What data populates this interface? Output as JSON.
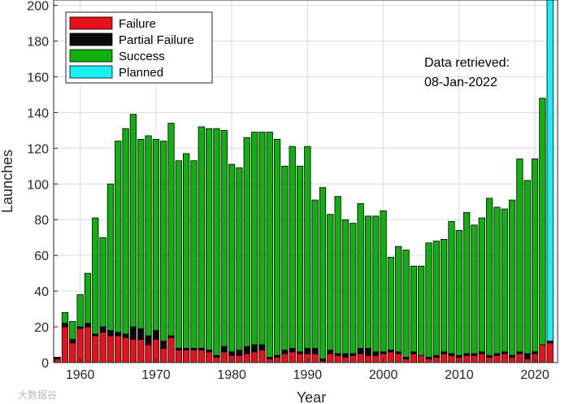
{
  "chart_data": {
    "type": "bar",
    "stacked": true,
    "xlabel": "Year",
    "ylabel": "Launches",
    "xlim": [
      1956.5,
      2023
    ],
    "ylim": [
      0,
      203
    ],
    "grid": true,
    "legend_position": "top-left",
    "x_ticks": [
      1960,
      1970,
      1980,
      1990,
      2000,
      2010,
      2020
    ],
    "y_ticks": [
      0,
      20,
      40,
      60,
      80,
      100,
      120,
      140,
      160,
      180,
      200
    ],
    "annotation": [
      "Data retrieved:",
      "08-Jan-2022"
    ],
    "watermark": "大数据谷",
    "colors": {
      "failure": "#e8111a",
      "partial": "#0a0a0a",
      "success": "#11b011",
      "planned": "#19f0f5"
    },
    "series": [
      {
        "name": "Failure",
        "key": "failure"
      },
      {
        "name": "Partial Failure",
        "key": "partial"
      },
      {
        "name": "Success",
        "key": "success"
      },
      {
        "name": "Planned",
        "key": "planned"
      }
    ],
    "x": [
      1957,
      1958,
      1959,
      1960,
      1961,
      1962,
      1963,
      1964,
      1965,
      1966,
      1967,
      1968,
      1969,
      1970,
      1971,
      1972,
      1973,
      1974,
      1975,
      1976,
      1977,
      1978,
      1979,
      1980,
      1981,
      1982,
      1983,
      1984,
      1985,
      1986,
      1987,
      1988,
      1989,
      1990,
      1991,
      1992,
      1993,
      1994,
      1995,
      1996,
      1997,
      1998,
      1999,
      2000,
      2001,
      2002,
      2003,
      2004,
      2005,
      2006,
      2007,
      2008,
      2009,
      2010,
      2011,
      2012,
      2013,
      2014,
      2015,
      2016,
      2017,
      2018,
      2019,
      2020,
      2021,
      2022
    ],
    "failure": [
      2,
      20,
      11,
      19,
      20,
      15,
      17,
      15,
      15,
      14,
      13,
      13,
      10,
      13,
      8,
      14,
      7,
      7,
      7,
      7,
      6,
      3,
      6,
      4,
      4,
      5,
      6,
      7,
      2,
      3,
      5,
      6,
      5,
      5,
      5,
      1,
      5,
      4,
      3,
      4,
      5,
      4,
      4,
      5,
      6,
      5,
      2,
      5,
      4,
      2,
      3,
      5,
      4,
      3,
      4,
      4,
      5,
      3,
      4,
      5,
      3,
      5,
      2,
      5,
      10,
      11
    ],
    "partial": [
      1,
      2,
      2,
      1,
      2,
      1,
      3,
      3,
      2,
      2,
      7,
      6,
      5,
      5,
      4,
      1,
      1,
      1,
      1,
      1,
      1,
      1,
      3,
      2,
      3,
      4,
      4,
      3,
      1,
      1,
      2,
      2,
      1,
      3,
      3,
      1,
      2,
      1,
      2,
      1,
      3,
      4,
      2,
      1,
      1,
      1,
      1,
      1,
      0,
      1,
      1,
      1,
      1,
      1,
      1,
      1,
      1,
      1,
      1,
      1,
      1,
      1,
      3,
      1,
      0,
      1
    ],
    "success": [
      0,
      6,
      10,
      18,
      28,
      65,
      50,
      82,
      107,
      115,
      119,
      106,
      112,
      107,
      112,
      119,
      105,
      109,
      105,
      124,
      124,
      127,
      121,
      105,
      102,
      117,
      119,
      119,
      126,
      121,
      103,
      113,
      104,
      113,
      83,
      96,
      76,
      88,
      75,
      73,
      81,
      74,
      76,
      79,
      52,
      59,
      60,
      48,
      50,
      64,
      64,
      63,
      74,
      70,
      79,
      72,
      75,
      88,
      82,
      80,
      87,
      108,
      97,
      108,
      138,
      0
    ],
    "planned": [
      0,
      0,
      0,
      0,
      0,
      0,
      0,
      0,
      0,
      0,
      0,
      0,
      0,
      0,
      0,
      0,
      0,
      0,
      0,
      0,
      0,
      0,
      0,
      0,
      0,
      0,
      0,
      0,
      0,
      0,
      0,
      0,
      0,
      0,
      0,
      0,
      0,
      0,
      0,
      0,
      0,
      0,
      0,
      0,
      0,
      0,
      0,
      0,
      0,
      0,
      0,
      0,
      0,
      0,
      0,
      0,
      0,
      0,
      0,
      0,
      0,
      0,
      0,
      0,
      0,
      203
    ]
  }
}
